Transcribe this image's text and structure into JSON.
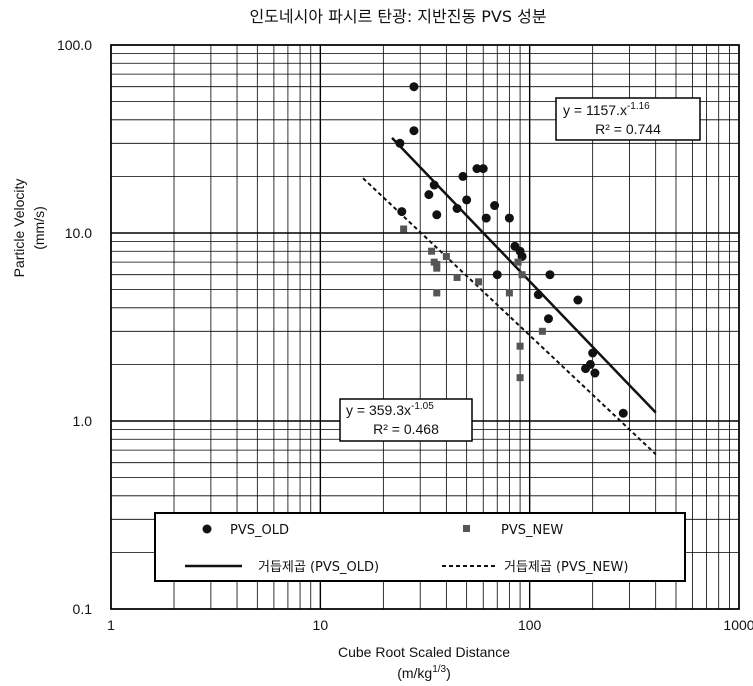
{
  "chart_data": {
    "type": "scatter",
    "title": "인도네시아 파시르 탄광: 지반진동 PVS 성분",
    "xlabel": "Cube Root Scaled Distance",
    "xlabel_unit": "(m/kg",
    "xlabel_unit_sup": "1/3",
    "xlabel_unit_close": ")",
    "ylabel": "Particle Velocity",
    "ylabel_unit": "(mm/s)",
    "x_scale": "log",
    "y_scale": "log",
    "xlim": [
      1,
      1000
    ],
    "ylim": [
      0.1,
      100
    ],
    "x_ticks": [
      "1",
      "10",
      "100",
      "1000"
    ],
    "y_ticks": [
      "0.1",
      "1.0",
      "10.0",
      "100.0"
    ],
    "grid": true,
    "legend_position": "bottom-center",
    "series": [
      {
        "name": "PVS_OLD",
        "marker": "circle",
        "color": "#111111",
        "x": [
          24,
          24.5,
          28,
          28,
          33,
          35,
          36,
          45,
          48,
          50,
          56,
          60,
          62,
          68,
          70,
          80,
          85,
          90,
          92,
          110,
          125,
          123,
          170,
          185,
          195,
          200,
          205,
          280
        ],
        "y": [
          30,
          13,
          60,
          35,
          16,
          18,
          12.5,
          13.5,
          20,
          15,
          22,
          22,
          12,
          14,
          6,
          12,
          8.5,
          8,
          7.5,
          4.7,
          6,
          3.5,
          4.4,
          1.9,
          2,
          2.3,
          1.8,
          1.1
        ]
      },
      {
        "name": "PVS_NEW",
        "marker": "square",
        "color": "#555555",
        "x": [
          25,
          34,
          35,
          36,
          36,
          36,
          40,
          45,
          57,
          80,
          88,
          90,
          90,
          92,
          115
        ],
        "y": [
          10.5,
          8,
          7,
          6.5,
          6.8,
          4.8,
          7.5,
          5.8,
          5.5,
          4.8,
          7,
          2.5,
          1.7,
          6,
          3
        ]
      }
    ],
    "trendlines": [
      {
        "name": "거듭제곱 (PVS_OLD)",
        "style": "solid",
        "a": 1157,
        "b": -1.16,
        "x_range": [
          22,
          400
        ],
        "equation_prefix": "y = 1157.x",
        "equation_exp": "-1.16",
        "r2": "R² = 0.744"
      },
      {
        "name": "거듭제곱 (PVS_NEW)",
        "style": "dashed",
        "a": 359.3,
        "b": -1.05,
        "x_range": [
          16,
          400
        ],
        "equation_prefix": "y = 359.3x",
        "equation_exp": "-1.05",
        "r2": "R² = 0.468"
      }
    ]
  }
}
